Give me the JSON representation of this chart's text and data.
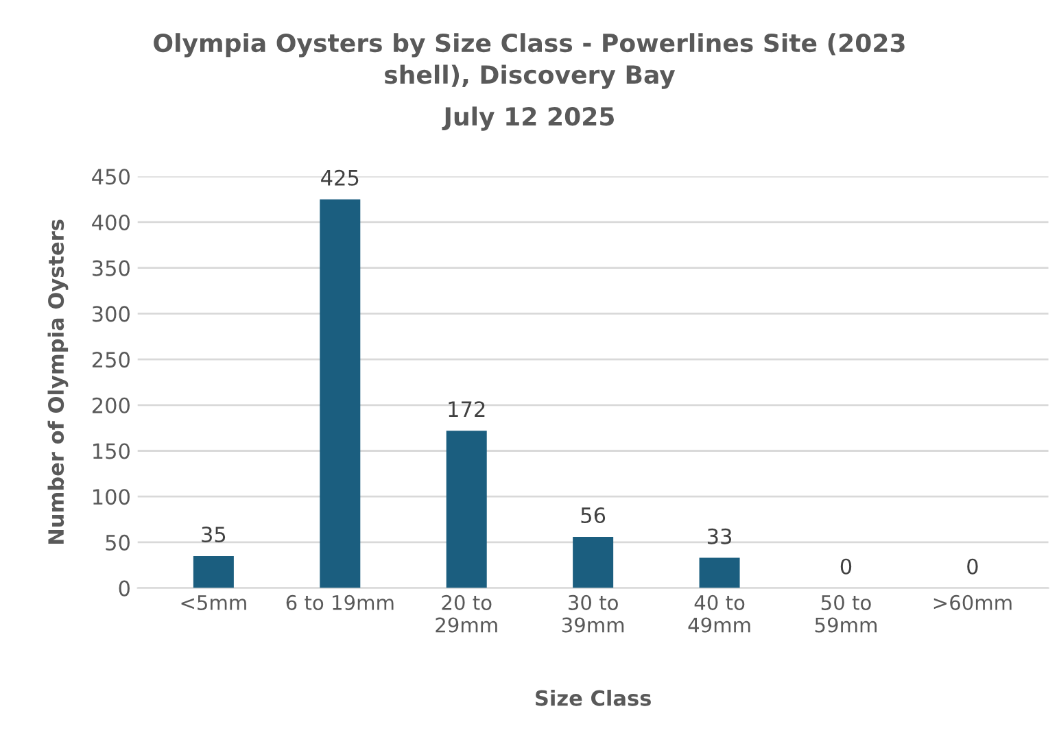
{
  "chart_data": {
    "type": "bar",
    "title": "Olympia Oysters by Size Class - Powerlines Site (2023\nshell), Discovery Bay",
    "subtitle": "July 12 2025",
    "xlabel": "Size Class",
    "ylabel": "Number of Olympia Oysters",
    "categories": [
      "<5mm",
      "6 to 19mm",
      "20 to\n29mm",
      "30 to\n39mm",
      "40 to\n49mm",
      "50 to\n59mm",
      ">60mm"
    ],
    "values": [
      35,
      425,
      172,
      56,
      33,
      0,
      0
    ],
    "color": "#1b5e7f",
    "ylim": [
      0,
      450
    ],
    "yticks": [
      0,
      50,
      100,
      150,
      200,
      250,
      300,
      350,
      400,
      450
    ],
    "grid": "y",
    "data_labels": true
  }
}
